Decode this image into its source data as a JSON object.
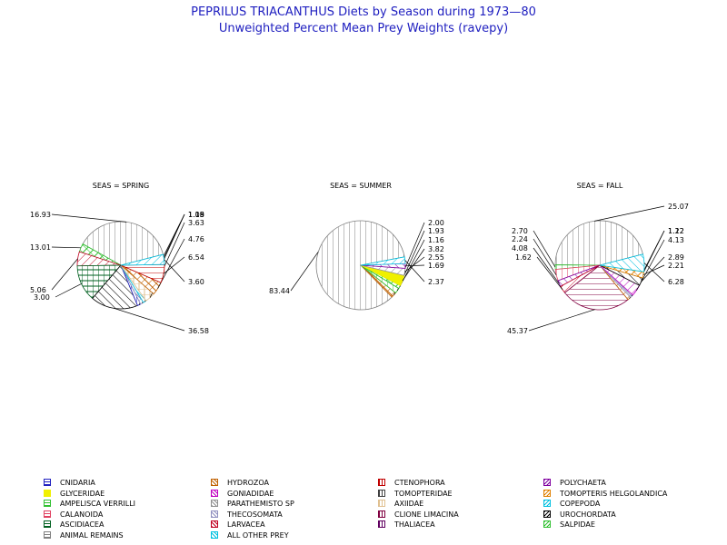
{
  "title": "PEPRILUS TRIACANTHUS Diets by Season during 1973—80",
  "subtitle": "Unweighted Percent Mean Prey Weights (ravepy)",
  "chart_data": [
    {
      "type": "pie",
      "title": "SEAS = SPRING",
      "slices": [
        {
          "category": "ANIMAL REMAINS",
          "value": 36.58
        },
        {
          "category": "SALPIDAE",
          "value": 3.0
        },
        {
          "category": "LARVACEA",
          "value": 5.06
        },
        {
          "category": "ASCIDIACEA",
          "value": 13.01
        },
        {
          "category": "UROCHORDATA",
          "value": 16.93
        },
        {
          "category": "CNIDARIA",
          "value": 1.19
        },
        {
          "category": "THECOSOMATA",
          "value": 1.15
        },
        {
          "category": "COPEPODA",
          "value": 1.08
        },
        {
          "category": "AXIIDAE",
          "value": 3.63
        },
        {
          "category": "HYDROZOA",
          "value": 4.76
        },
        {
          "category": "CTENOPHORA",
          "value": 6.54
        },
        {
          "category": "ALL OTHER PREY",
          "value": 3.6
        }
      ],
      "labels": [
        "16.93",
        "13.01",
        "5.06",
        "3.00",
        "36.58",
        "1.19",
        "1.15",
        "1.08",
        "3.63",
        "4.76",
        "6.54",
        "3.60"
      ]
    },
    {
      "type": "pie",
      "title": "SEAS = SUMMER",
      "slices": [
        {
          "category": "ANIMAL REMAINS",
          "value": 83.44
        },
        {
          "category": "HYDROZOA",
          "value": 2.0
        },
        {
          "category": "AMPELISCA VERRILLI",
          "value": 1.93
        },
        {
          "category": "SALPIDAE",
          "value": 1.16
        },
        {
          "category": "GLYCERIDAE",
          "value": 3.82
        },
        {
          "category": "PARATHEMISTO SP",
          "value": 2.55
        },
        {
          "category": "POLYCHAETA",
          "value": 1.69
        },
        {
          "category": "ALL OTHER PREY",
          "value": 2.37
        }
      ],
      "labels": [
        "83.44",
        "2.00",
        "1.93",
        "1.16",
        "3.82",
        "2.55",
        "1.69",
        "2.37"
      ]
    },
    {
      "type": "pie",
      "title": "SEAS = FALL",
      "slices": [
        {
          "category": "ANIMAL REMAINS",
          "value": 45.37
        },
        {
          "category": "AMPELISCA VERRILLI",
          "value": 1.62
        },
        {
          "category": "CALANOIDA",
          "value": 4.08
        },
        {
          "category": "POLYCHAETA",
          "value": 2.24
        },
        {
          "category": "LARVACEA",
          "value": 2.7
        },
        {
          "category": "CLIONE LIMACINA",
          "value": 25.07
        },
        {
          "category": "HYDROZOA",
          "value": 1.22
        },
        {
          "category": "THECOSOMATA",
          "value": 1.12
        },
        {
          "category": "GONIADIDAE",
          "value": 4.13
        },
        {
          "category": "UROCHORDATA",
          "value": 2.89
        },
        {
          "category": "TOMOPTERIS HELGOLANDICA",
          "value": 2.21
        },
        {
          "category": "COPEPODA",
          "value": 6.28
        }
      ],
      "labels": [
        "25.07",
        "2.70",
        "2.24",
        "4.08",
        "1.62",
        "45.37",
        "1.22",
        "1.12",
        "4.13",
        "2.89",
        "2.21",
        "6.28"
      ]
    }
  ],
  "legend": [
    {
      "label": "CNIDARIA",
      "color": "#2020c0"
    },
    {
      "label": "HYDROZOA",
      "color": "#c06000"
    },
    {
      "label": "CTENOPHORA",
      "color": "#c00000"
    },
    {
      "label": "POLYCHAETA",
      "color": "#8000a0"
    },
    {
      "label": "GLYCERIDAE",
      "color": "#f0f000"
    },
    {
      "label": "GONIADIDAE",
      "color": "#c000c0"
    },
    {
      "label": "TOMOPTERIDAE",
      "color": "#404040"
    },
    {
      "label": "TOMOPTERIS HELGOLANDICA",
      "color": "#e08000"
    },
    {
      "label": "AMPELISCA VERRILLI",
      "color": "#30c030"
    },
    {
      "label": "PARATHEMISTO SP",
      "color": "#909090"
    },
    {
      "label": "AXIIDAE",
      "color": "#e0c090"
    },
    {
      "label": "COPEPODA",
      "color": "#00c0e0"
    },
    {
      "label": "CALANOIDA",
      "color": "#e04060"
    },
    {
      "label": "THECOSOMATA",
      "color": "#9090c0"
    },
    {
      "label": "CLIONE LIMACINA",
      "color": "#800040"
    },
    {
      "label": "UROCHORDATA",
      "color": "#000000"
    },
    {
      "label": "ASCIDIACEA",
      "color": "#006020"
    },
    {
      "label": "LARVACEA",
      "color": "#c00020"
    },
    {
      "label": "THALIACEA",
      "color": "#600060"
    },
    {
      "label": "SALPIDAE",
      "color": "#30c030"
    },
    {
      "label": "ANIMAL REMAINS",
      "color": "#808080"
    },
    {
      "label": "ALL OTHER PREY",
      "color": "#00c0e0"
    }
  ]
}
